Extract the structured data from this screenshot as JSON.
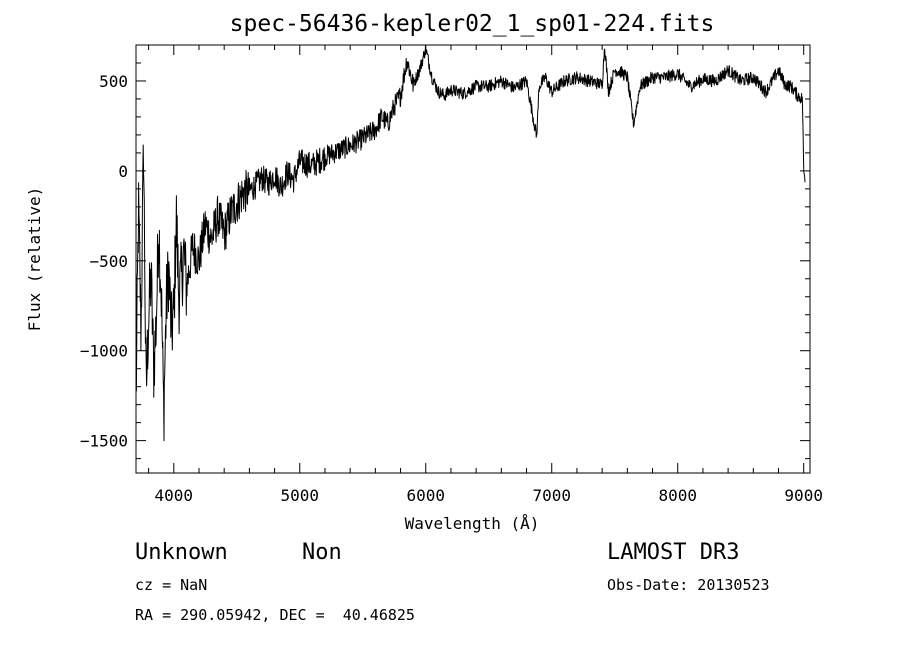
{
  "chart_data": {
    "type": "line",
    "title": "spec-56436-kepler02_1_sp01-224.fits",
    "xlabel": "Wavelength (Å)",
    "ylabel": "Flux (relative)",
    "xlim": [
      3700,
      9050
    ],
    "ylim": [
      -1680,
      700
    ],
    "xticks": [
      4000,
      5000,
      6000,
      7000,
      8000,
      9000
    ],
    "yticks": [
      -1500,
      -1000,
      -500,
      0,
      500
    ],
    "ytick_labels": [
      "−1500",
      "−1000",
      "−500",
      "0",
      "500"
    ],
    "grid": false,
    "series": [
      {
        "x": [
          3700,
          3720,
          3740,
          3760,
          3780,
          3800,
          3820,
          3840,
          3860,
          3880,
          3900,
          3920,
          3940,
          3960,
          3980,
          4000,
          4020,
          4040,
          4060,
          4080,
          4100,
          4150,
          4200,
          4250,
          4300,
          4350,
          4400,
          4450,
          4500,
          4550,
          4600,
          4650,
          4700,
          4750,
          4800,
          4850,
          4900,
          4950,
          5000,
          5100,
          5200,
          5300,
          5400,
          5500,
          5600,
          5650,
          5700,
          5750,
          5800,
          5850,
          5900,
          5950,
          6000,
          6050,
          6100,
          6150,
          6200,
          6300,
          6400,
          6500,
          6600,
          6700,
          6800,
          6880,
          6900,
          6950,
          7000,
          7100,
          7200,
          7300,
          7400,
          7420,
          7450,
          7500,
          7550,
          7600,
          7650,
          7700,
          7800,
          7900,
          8000,
          8100,
          8200,
          8300,
          8400,
          8500,
          8600,
          8700,
          8800,
          8850,
          8900,
          8950,
          8990,
          9000,
          9010
        ],
        "y": [
          -1300,
          -200,
          -900,
          150,
          -1250,
          -800,
          -600,
          -1100,
          -850,
          -300,
          -650,
          -1350,
          -750,
          -550,
          -900,
          -800,
          -250,
          -700,
          -600,
          -450,
          -650,
          -420,
          -500,
          -300,
          -380,
          -250,
          -350,
          -240,
          -180,
          -120,
          -110,
          -80,
          -40,
          -70,
          -20,
          -90,
          -10,
          -50,
          50,
          30,
          80,
          110,
          140,
          180,
          230,
          300,
          260,
          360,
          420,
          620,
          480,
          560,
          680,
          520,
          440,
          420,
          450,
          430,
          470,
          470,
          500,
          460,
          500,
          190,
          470,
          520,
          440,
          500,
          520,
          500,
          480,
          700,
          440,
          560,
          550,
          520,
          260,
          470,
          520,
          520,
          540,
          470,
          510,
          500,
          560,
          500,
          520,
          440,
          560,
          480,
          470,
          420,
          400,
          0,
          -50
        ]
      }
    ]
  },
  "info": {
    "class_label": "Unknown",
    "subclass_label": "Non",
    "survey": "LAMOST DR3",
    "cz": "cz = NaN",
    "obs_date": "Obs-Date: 20130523",
    "coords": "RA = 290.05942, DEC =  40.46825"
  }
}
